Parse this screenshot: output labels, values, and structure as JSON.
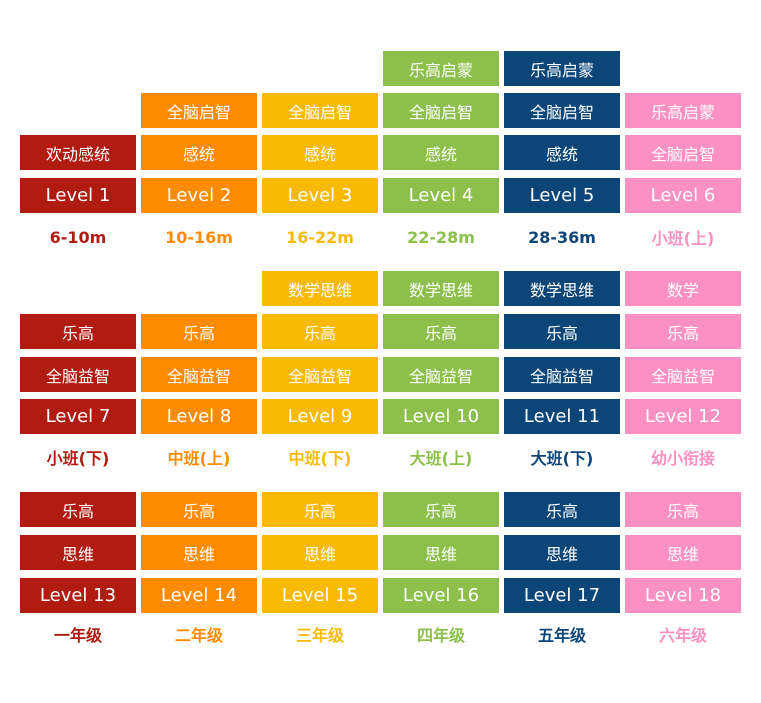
{
  "colors": {
    "red": "#b01b12",
    "orange": "#ff8c00",
    "yellow": "#f9ba06",
    "green": "#8cc04a",
    "navy": "#0c4679",
    "pink": "#fb90c2"
  },
  "group1": {
    "col1": {
      "tags": [
        "欢动感统"
      ],
      "level": "Level 1",
      "age": "6-10m"
    },
    "col2": {
      "tags": [
        "全脑启智",
        "感统"
      ],
      "level": "Level 2",
      "age": "10-16m"
    },
    "col3": {
      "tags": [
        "全脑启智",
        "感统"
      ],
      "level": "Level 3",
      "age": "16-22m"
    },
    "col4": {
      "tags": [
        "乐高启蒙",
        "全脑启智",
        "感统"
      ],
      "level": "Level 4",
      "age": "22-28m"
    },
    "col5": {
      "tags": [
        "乐高启蒙",
        "全脑启智",
        "感统"
      ],
      "level": "Level 5",
      "age": "28-36m"
    },
    "col6": {
      "tags": [
        "乐高启蒙",
        "全脑启智"
      ],
      "level": "Level 6",
      "age": "小班(上)"
    }
  },
  "group2": {
    "col1": {
      "tags": [
        "乐高",
        "全脑益智"
      ],
      "level": "Level 7",
      "age": "小班(下)"
    },
    "col2": {
      "tags": [
        "乐高",
        "全脑益智"
      ],
      "level": "Level 8",
      "age": "中班(上)"
    },
    "col3": {
      "tags": [
        "数学思维",
        "乐高",
        "全脑益智"
      ],
      "level": "Level 9",
      "age": "中班(下)"
    },
    "col4": {
      "tags": [
        "数学思维",
        "乐高",
        "全脑益智"
      ],
      "level": "Level 10",
      "age": "大班(上)"
    },
    "col5": {
      "tags": [
        "数学思维",
        "乐高",
        "全脑益智"
      ],
      "level": "Level 11",
      "age": "大班(下)"
    },
    "col6": {
      "tags": [
        "数学",
        "乐高",
        "全脑益智"
      ],
      "level": "Level 12",
      "age": "幼小衔接"
    }
  },
  "group3": {
    "col1": {
      "tags": [
        "乐高",
        "思维"
      ],
      "level": "Level 13",
      "age": "一年级"
    },
    "col2": {
      "tags": [
        "乐高",
        "思维"
      ],
      "level": "Level 14",
      "age": "二年级"
    },
    "col3": {
      "tags": [
        "乐高",
        "思维"
      ],
      "level": "Level 15",
      "age": "三年级"
    },
    "col4": {
      "tags": [
        "乐高",
        "思维"
      ],
      "level": "Level 16",
      "age": "四年级"
    },
    "col5": {
      "tags": [
        "乐高",
        "思维"
      ],
      "level": "Level 17",
      "age": "五年级"
    },
    "col6": {
      "tags": [
        "乐高",
        "思维"
      ],
      "level": "Level 18",
      "age": "六年级"
    }
  }
}
